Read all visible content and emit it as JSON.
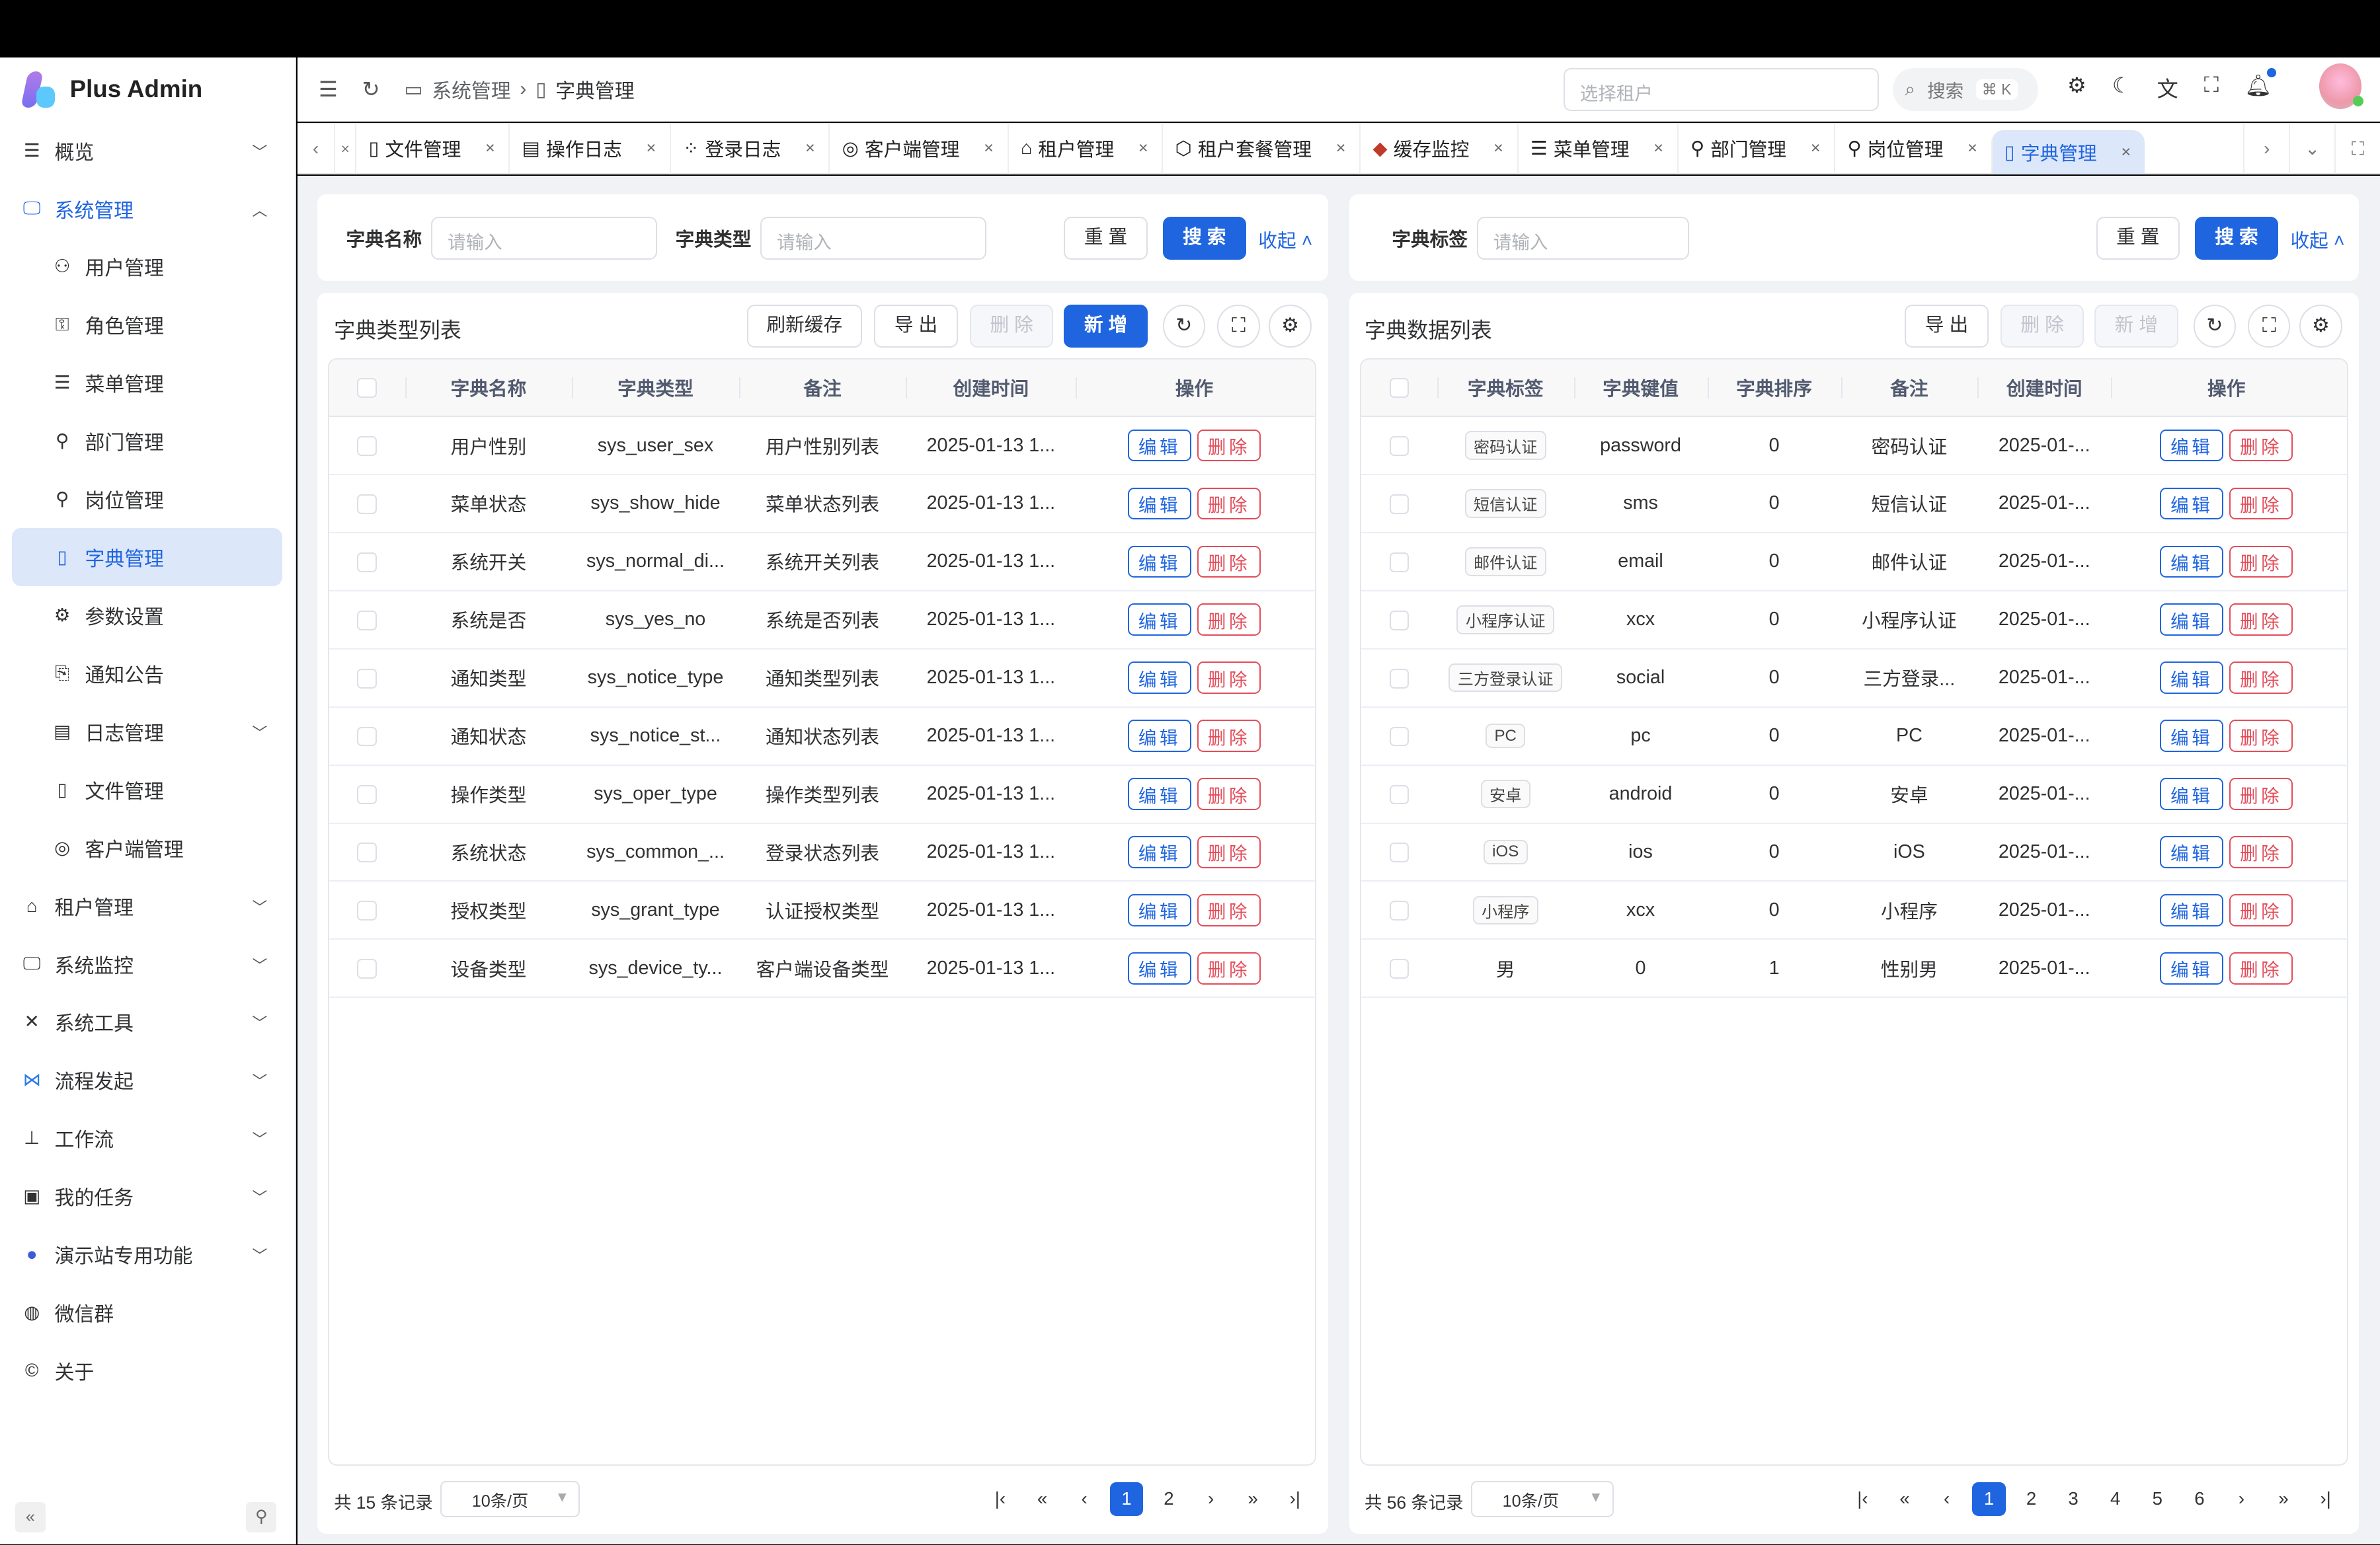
{
  "app": {
    "name": "Plus Admin"
  },
  "sidebar": {
    "items": [
      {
        "label": "概览",
        "icon": "menu-icon",
        "chevron": "down"
      },
      {
        "label": "系统管理",
        "icon": "monitor-icon",
        "chevron": "up",
        "open": true
      },
      {
        "label": "用户管理",
        "icon": "user-icon",
        "sub": true
      },
      {
        "label": "角色管理",
        "icon": "role-icon",
        "sub": true
      },
      {
        "label": "菜单管理",
        "icon": "menu-icon",
        "sub": true
      },
      {
        "label": "部门管理",
        "icon": "org-icon",
        "sub": true
      },
      {
        "label": "岗位管理",
        "icon": "post-icon",
        "sub": true
      },
      {
        "label": "字典管理",
        "icon": "dict-icon",
        "sub": true,
        "active": true
      },
      {
        "label": "参数设置",
        "icon": "gear-icon",
        "sub": true
      },
      {
        "label": "通知公告",
        "icon": "notice-icon",
        "sub": true
      },
      {
        "label": "日志管理",
        "icon": "log-icon",
        "sub": true,
        "chevron": "down"
      },
      {
        "label": "文件管理",
        "icon": "file-icon",
        "sub": true
      },
      {
        "label": "客户端管理",
        "icon": "client-icon",
        "sub": true
      },
      {
        "label": "租户管理",
        "icon": "home-icon",
        "chevron": "down"
      },
      {
        "label": "系统监控",
        "icon": "monitor-icon",
        "chevron": "down"
      },
      {
        "label": "系统工具",
        "icon": "tools-icon",
        "chevron": "down"
      },
      {
        "label": "流程发起",
        "icon": "flow-icon",
        "chevron": "down"
      },
      {
        "label": "工作流",
        "icon": "workflow-icon",
        "chevron": "down"
      },
      {
        "label": "我的任务",
        "icon": "task-icon",
        "chevron": "down"
      },
      {
        "label": "演示站专用功能",
        "icon": "globe-icon",
        "chevron": "down"
      },
      {
        "label": "微信群",
        "icon": "wechat-icon"
      },
      {
        "label": "关于",
        "icon": "copyright-icon"
      }
    ]
  },
  "header": {
    "breadcrumb": [
      "系统管理",
      "字典管理"
    ],
    "tenant_placeholder": "选择租户",
    "search_label": "搜索",
    "search_shortcut": "⌘ K"
  },
  "tabs": [
    {
      "label": "文件管理",
      "icon": "file-icon"
    },
    {
      "label": "操作日志",
      "icon": "log-icon"
    },
    {
      "label": "登录日志",
      "icon": "login-log-icon"
    },
    {
      "label": "客户端管理",
      "icon": "client-icon"
    },
    {
      "label": "租户管理",
      "icon": "home-icon"
    },
    {
      "label": "租户套餐管理",
      "icon": "package-icon"
    },
    {
      "label": "缓存监控",
      "icon": "redis-icon"
    },
    {
      "label": "菜单管理",
      "icon": "menu-icon"
    },
    {
      "label": "部门管理",
      "icon": "org-icon"
    },
    {
      "label": "岗位管理",
      "icon": "post-icon"
    },
    {
      "label": "字典管理",
      "icon": "dict-icon",
      "active": true
    }
  ],
  "left": {
    "search": {
      "name_label": "字典名称",
      "name_placeholder": "请输入",
      "type_label": "字典类型",
      "type_placeholder": "请输入",
      "reset": "重 置",
      "search": "搜 索",
      "collapse": "收起"
    },
    "title": "字典类型列表",
    "toolbar": {
      "refresh_cache": "刷新缓存",
      "export": "导 出",
      "delete": "删 除",
      "add": "新 增"
    },
    "columns": [
      "字典名称",
      "字典类型",
      "备注",
      "创建时间",
      "操作"
    ],
    "rows": [
      [
        "用户性别",
        "sys_user_sex",
        "用户性别列表",
        "2025-01-13 1..."
      ],
      [
        "菜单状态",
        "sys_show_hide",
        "菜单状态列表",
        "2025-01-13 1..."
      ],
      [
        "系统开关",
        "sys_normal_di...",
        "系统开关列表",
        "2025-01-13 1..."
      ],
      [
        "系统是否",
        "sys_yes_no",
        "系统是否列表",
        "2025-01-13 1..."
      ],
      [
        "通知类型",
        "sys_notice_type",
        "通知类型列表",
        "2025-01-13 1..."
      ],
      [
        "通知状态",
        "sys_notice_st...",
        "通知状态列表",
        "2025-01-13 1..."
      ],
      [
        "操作类型",
        "sys_oper_type",
        "操作类型列表",
        "2025-01-13 1..."
      ],
      [
        "系统状态",
        "sys_common_...",
        "登录状态列表",
        "2025-01-13 1..."
      ],
      [
        "授权类型",
        "sys_grant_type",
        "认证授权类型",
        "2025-01-13 1..."
      ],
      [
        "设备类型",
        "sys_device_ty...",
        "客户端设备类型",
        "2025-01-13 1..."
      ]
    ],
    "edit": "编辑",
    "del": "删除",
    "pagination": {
      "total": "共 15 条记录",
      "page_size": "10条/页",
      "pages": [
        "1",
        "2"
      ],
      "current": "1"
    }
  },
  "right": {
    "search": {
      "label_label": "字典标签",
      "label_placeholder": "请输入",
      "reset": "重 置",
      "search": "搜 索",
      "collapse": "收起"
    },
    "title": "字典数据列表",
    "toolbar": {
      "export": "导 出",
      "delete": "删 除",
      "add": "新 增"
    },
    "columns": [
      "字典标签",
      "字典键值",
      "字典排序",
      "备注",
      "创建时间",
      "操作"
    ],
    "rows": [
      [
        "密码认证",
        "password",
        "0",
        "密码认证",
        "2025-01-...",
        true
      ],
      [
        "短信认证",
        "sms",
        "0",
        "短信认证",
        "2025-01-...",
        true
      ],
      [
        "邮件认证",
        "email",
        "0",
        "邮件认证",
        "2025-01-...",
        true
      ],
      [
        "小程序认证",
        "xcx",
        "0",
        "小程序认证",
        "2025-01-...",
        true
      ],
      [
        "三方登录认证",
        "social",
        "0",
        "三方登录...",
        "2025-01-...",
        true
      ],
      [
        "PC",
        "pc",
        "0",
        "PC",
        "2025-01-...",
        true
      ],
      [
        "安卓",
        "android",
        "0",
        "安卓",
        "2025-01-...",
        true
      ],
      [
        "iOS",
        "ios",
        "0",
        "iOS",
        "2025-01-...",
        true
      ],
      [
        "小程序",
        "xcx",
        "0",
        "小程序",
        "2025-01-...",
        true
      ],
      [
        "男",
        "0",
        "1",
        "性别男",
        "2025-01-...",
        false
      ]
    ],
    "edit": "编辑",
    "del": "删除",
    "pagination": {
      "total": "共 56 条记录",
      "page_size": "10条/页",
      "pages": [
        "1",
        "2",
        "3",
        "4",
        "5",
        "6"
      ],
      "current": "1"
    }
  },
  "colors": {
    "primary": "#1f65e0",
    "danger": "#e34d59",
    "active_bg": "#dde7fa"
  }
}
